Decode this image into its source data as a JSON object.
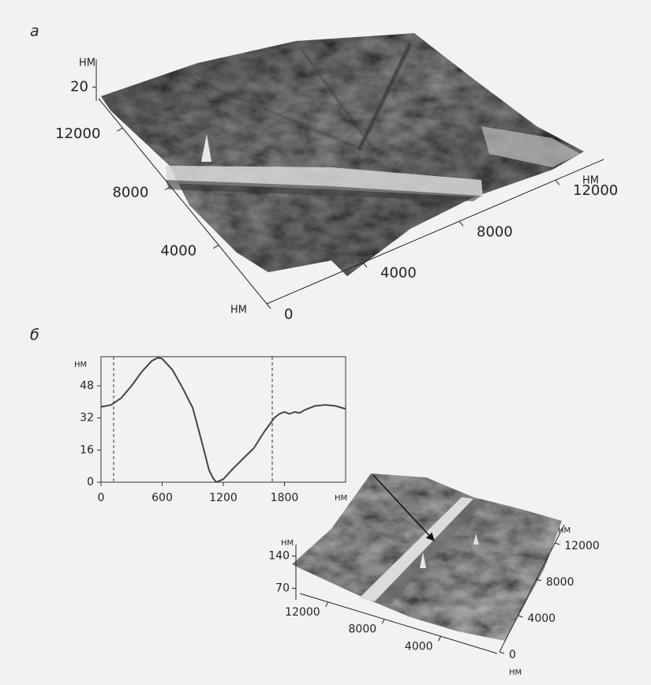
{
  "chart_data": [
    {
      "type": "surface3d",
      "label": "а",
      "zlabel": "НМ",
      "zlim": [
        16,
        28
      ],
      "zticks": [
        20
      ],
      "ylabel": "НМ",
      "ylim": [
        0,
        14000
      ],
      "yticks": [
        4000,
        8000,
        12000
      ],
      "xlabel": "НМ",
      "xlim": [
        0,
        14000
      ],
      "xticks": [
        0,
        4000,
        8000,
        12000
      ]
    },
    {
      "type": "line",
      "label": "б",
      "color": "#444444",
      "x": [
        0,
        100,
        200,
        300,
        400,
        500,
        560,
        600,
        700,
        800,
        900,
        1000,
        1060,
        1100,
        1130,
        1200,
        1300,
        1400,
        1500,
        1600,
        1700,
        1750,
        1800,
        1850,
        1900,
        1950,
        2000,
        2100,
        2200,
        2300,
        2400
      ],
      "values": [
        37.5,
        38.5,
        42,
        48,
        55,
        60.5,
        62,
        61.5,
        56,
        47,
        37,
        18,
        6,
        2,
        0,
        1.5,
        7,
        12,
        17,
        25,
        32,
        34,
        35,
        34,
        35,
        34.5,
        36,
        38,
        38.5,
        38,
        36.5
      ],
      "xlim": [
        0,
        2400
      ],
      "ylim": [
        0,
        62.5
      ],
      "xticks": [
        0,
        600,
        1200,
        1800
      ],
      "yticks": [
        0,
        16,
        32,
        48
      ],
      "xlabel": "НМ",
      "ylabel": "НМ",
      "markers": [
        124,
        1680
      ]
    },
    {
      "type": "surface3d",
      "zlabel": "НМ",
      "zlim": [
        45,
        165
      ],
      "zticks": [
        70,
        140
      ],
      "ylabel": "НМ",
      "ylim": [
        0,
        14000
      ],
      "yticks": [
        4000,
        8000,
        12000
      ],
      "xlabel": "НМ",
      "xlim": [
        0,
        14000
      ],
      "xticks": [
        0,
        4000,
        8000,
        12000
      ]
    }
  ]
}
